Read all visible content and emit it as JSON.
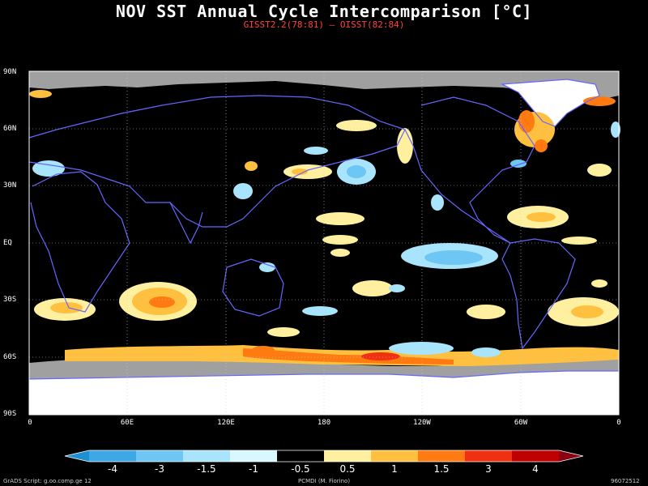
{
  "title": "NOV SST Annual Cycle Intercomparison [°C]",
  "subtitle": "GISST2.2(78:81) – OISST(82:84)",
  "lat_labels": [
    "90N",
    "60N",
    "30N",
    "EQ",
    "30S",
    "60S",
    "90S"
  ],
  "lon_labels": [
    "0",
    "60E",
    "120E",
    "180",
    "120W",
    "60W",
    "0"
  ],
  "colorbar": {
    "labels": [
      "-4",
      "-3",
      "-1.5",
      "-1",
      "-0.5",
      "0.5",
      "1",
      "1.5",
      "3",
      "4"
    ],
    "colors": [
      "#1e8fd0",
      "#3ea8e6",
      "#6ec6f5",
      "#a8e4fb",
      "#d8f7ff",
      "#000000",
      "#fff0a0",
      "#ffc040",
      "#ff7a10",
      "#f03010",
      "#c00000",
      "#8a0010"
    ]
  },
  "colors": {
    "land_ice": "#a0a0a0",
    "ice_white": "#ffffff",
    "coast": "#6666ff",
    "neutral": "#000000"
  },
  "footer": {
    "left": "GrADS Script: g.oo.comp.ge 12",
    "center": "PCMDI (M. Fiorino)",
    "right": "96072512"
  }
}
